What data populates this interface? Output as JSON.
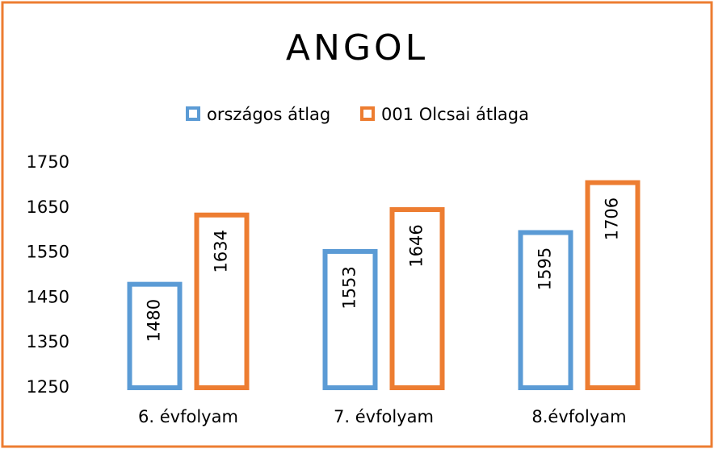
{
  "chart_data": {
    "type": "bar",
    "title": "ANGOL",
    "categories": [
      "6. évfolyam",
      "7. évfolyam",
      "8.évfolyam"
    ],
    "series": [
      {
        "name": "országos átlag",
        "color": "#5b9bd5",
        "values": [
          1480,
          1553,
          1595
        ]
      },
      {
        "name": "001 Olcsai átlaga",
        "color": "#ed7d31",
        "values": [
          1634,
          1646,
          1706
        ]
      }
    ],
    "ylim": [
      1250,
      1750
    ],
    "yticks": [
      1250,
      1350,
      1450,
      1550,
      1650,
      1750
    ],
    "grid": false,
    "legend": "top",
    "border_color": "#ed7d31"
  }
}
